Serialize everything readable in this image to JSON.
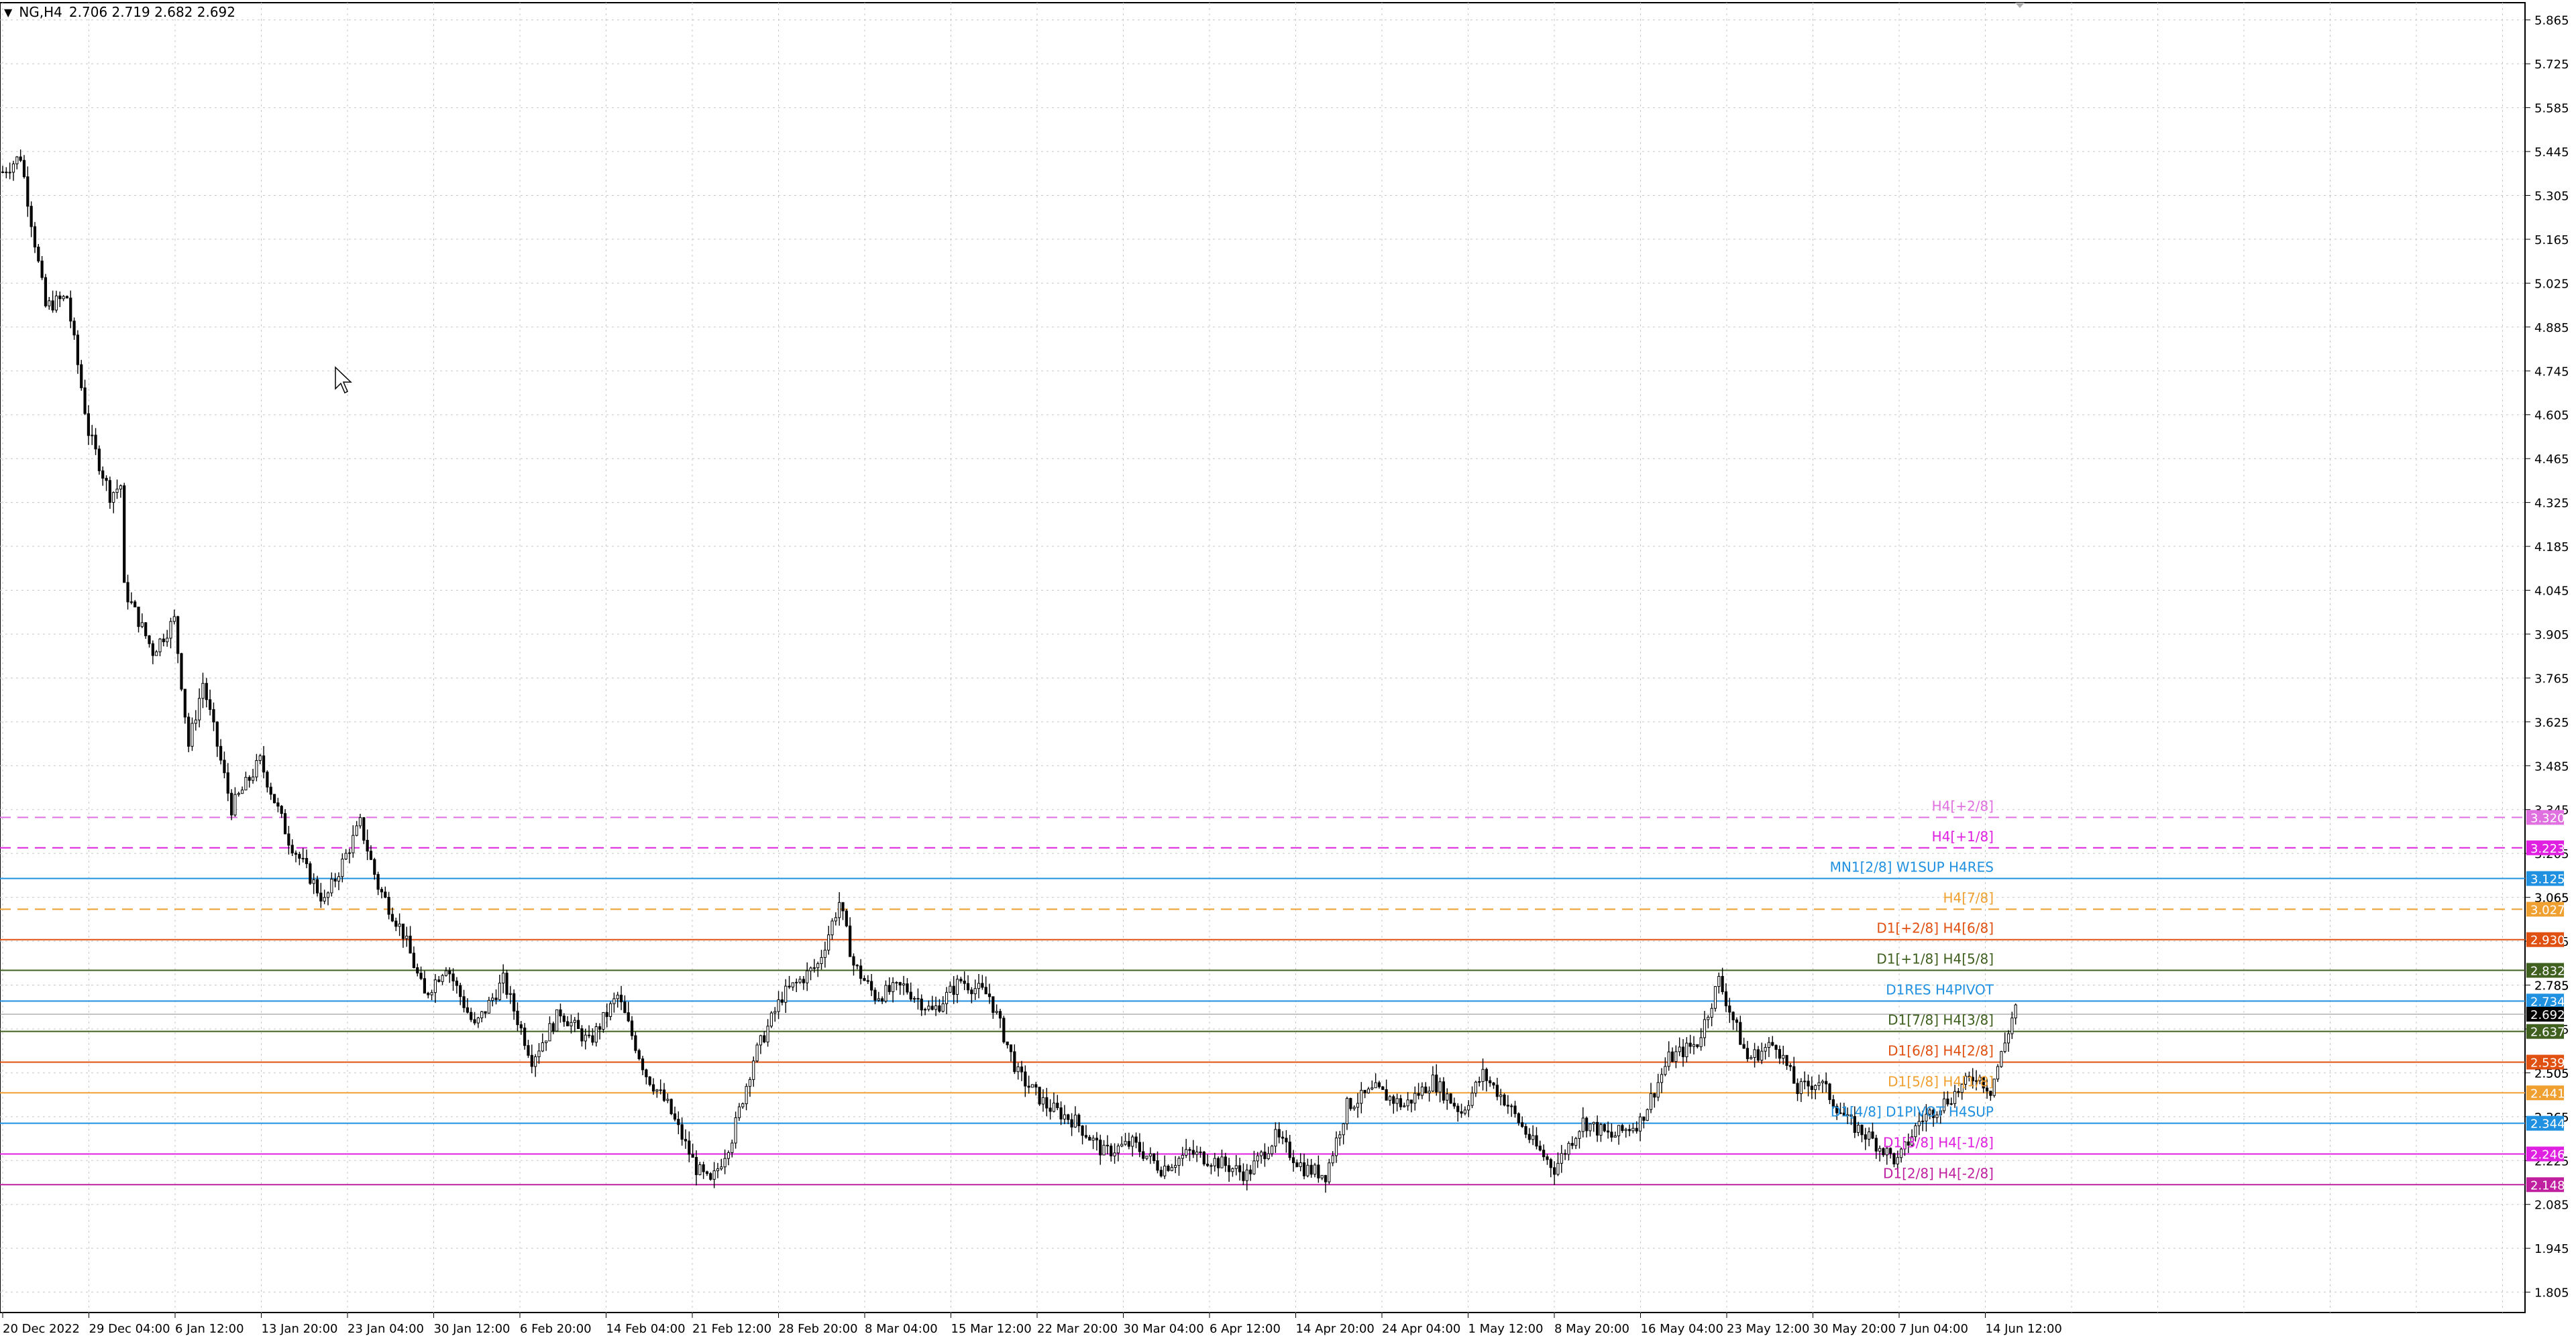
{
  "header": {
    "symbol": "NG,H4",
    "ohlc": "2.706 2.719 2.682 2.692"
  },
  "colors": {
    "background": "#ffffff",
    "grid": "#c8c8c8",
    "candle": "#000000",
    "axis": "#000000"
  },
  "chart_data": {
    "type": "candlestick",
    "grid": true,
    "ylim": [
      1.74,
      5.92
    ],
    "y_ticks": [
      "5.865",
      "5.725",
      "5.585",
      "5.445",
      "5.305",
      "5.165",
      "5.025",
      "4.885",
      "4.745",
      "4.605",
      "4.465",
      "4.325",
      "4.185",
      "4.045",
      "3.905",
      "3.765",
      "3.625",
      "3.485",
      "3.345",
      "3.205",
      "3.065",
      "2.925",
      "2.785",
      "2.645",
      "2.505",
      "2.365",
      "2.225",
      "2.085",
      "1.945",
      "1.805"
    ],
    "x_ticks": [
      "20 Dec 2022",
      "29 Dec 04:00",
      "6 Jan 12:00",
      "13 Jan 20:00",
      "23 Jan 04:00",
      "30 Jan 12:00",
      "6 Feb 20:00",
      "14 Feb 04:00",
      "21 Feb 12:00",
      "28 Feb 20:00",
      "8 Mar 04:00",
      "15 Mar 12:00",
      "22 Mar 20:00",
      "30 Mar 04:00",
      "6 Apr 12:00",
      "14 Apr 20:00",
      "24 Apr 04:00",
      "1 May 12:00",
      "8 May 20:00",
      "16 May 04:00",
      "23 May 12:00",
      "30 May 20:00",
      "7 Jun 04:00",
      "14 Jun 12:00"
    ],
    "price_path": [
      [
        0,
        5.38
      ],
      [
        5,
        5.43
      ],
      [
        12,
        4.95
      ],
      [
        18,
        4.98
      ],
      [
        24,
        4.55
      ],
      [
        30,
        4.35
      ],
      [
        33,
        4.38
      ],
      [
        34,
        4.05
      ],
      [
        42,
        3.85
      ],
      [
        48,
        3.95
      ],
      [
        52,
        3.55
      ],
      [
        56,
        3.75
      ],
      [
        64,
        3.35
      ],
      [
        72,
        3.5
      ],
      [
        80,
        3.25
      ],
      [
        90,
        3.05
      ],
      [
        100,
        3.3
      ],
      [
        105,
        3.1
      ],
      [
        112,
        2.95
      ],
      [
        118,
        2.75
      ],
      [
        124,
        2.85
      ],
      [
        132,
        2.65
      ],
      [
        140,
        2.8
      ],
      [
        148,
        2.55
      ],
      [
        156,
        2.7
      ],
      [
        164,
        2.6
      ],
      [
        172,
        2.75
      ],
      [
        180,
        2.5
      ],
      [
        186,
        2.4
      ],
      [
        194,
        2.2
      ],
      [
        198,
        2.15
      ],
      [
        204,
        2.3
      ],
      [
        210,
        2.55
      ],
      [
        218,
        2.75
      ],
      [
        228,
        2.85
      ],
      [
        234,
        3.05
      ],
      [
        238,
        2.85
      ],
      [
        244,
        2.75
      ],
      [
        252,
        2.78
      ],
      [
        260,
        2.7
      ],
      [
        268,
        2.8
      ],
      [
        276,
        2.75
      ],
      [
        284,
        2.5
      ],
      [
        292,
        2.4
      ],
      [
        300,
        2.35
      ],
      [
        308,
        2.25
      ],
      [
        316,
        2.28
      ],
      [
        324,
        2.2
      ],
      [
        332,
        2.25
      ],
      [
        340,
        2.22
      ],
      [
        348,
        2.18
      ],
      [
        356,
        2.3
      ],
      [
        364,
        2.2
      ],
      [
        370,
        2.18
      ],
      [
        376,
        2.4
      ],
      [
        384,
        2.45
      ],
      [
        392,
        2.4
      ],
      [
        400,
        2.48
      ],
      [
        408,
        2.38
      ],
      [
        414,
        2.5
      ],
      [
        420,
        2.42
      ],
      [
        428,
        2.28
      ],
      [
        434,
        2.2
      ],
      [
        442,
        2.35
      ],
      [
        450,
        2.3
      ],
      [
        458,
        2.35
      ],
      [
        466,
        2.55
      ],
      [
        474,
        2.6
      ],
      [
        480,
        2.8
      ],
      [
        488,
        2.55
      ],
      [
        496,
        2.6
      ],
      [
        502,
        2.45
      ],
      [
        508,
        2.48
      ],
      [
        516,
        2.35
      ],
      [
        522,
        2.3
      ],
      [
        530,
        2.22
      ],
      [
        536,
        2.35
      ],
      [
        544,
        2.42
      ],
      [
        552,
        2.5
      ],
      [
        556,
        2.45
      ],
      [
        560,
        2.6
      ],
      [
        563,
        2.72
      ]
    ],
    "levels": [
      {
        "label": "H4[+2/8]",
        "price_tag": "3.320",
        "value": 3.32,
        "color": "#e070e0",
        "dash": true
      },
      {
        "label": "H4[+1/8]",
        "price_tag": "3.223",
        "value": 3.223,
        "color": "#e020e0",
        "dash": true
      },
      {
        "label": "MN1[2/8] W1SUP H4RES",
        "price_tag": "3.125",
        "value": 3.125,
        "color": "#2090e0",
        "dash": false
      },
      {
        "label": "H4[7/8]",
        "price_tag": "3.027",
        "value": 3.027,
        "color": "#f0a030",
        "dash": true
      },
      {
        "label": "D1[+2/8] H4[6/8]",
        "price_tag": "2.930",
        "value": 2.93,
        "color": "#e05010",
        "dash": false
      },
      {
        "label": "D1[+1/8] H4[5/8]",
        "price_tag": "2.832",
        "value": 2.832,
        "color": "#406020",
        "dash": false
      },
      {
        "label": "D1RES H4PIVOT",
        "price_tag": "2.734",
        "value": 2.734,
        "color": "#2090e0",
        "dash": false
      },
      {
        "label": "D1[7/8] H4[3/8]",
        "price_tag": "2.637",
        "value": 2.637,
        "color": "#406020",
        "dash": false
      },
      {
        "label": "D1[6/8] H4[2/8]",
        "price_tag": "2.539",
        "value": 2.539,
        "color": "#e05010",
        "dash": false
      },
      {
        "label": "D1[5/8] H4[1/8]",
        "price_tag": "2.441",
        "value": 2.441,
        "color": "#f0a030",
        "dash": false
      },
      {
        "label": "D1[4/8] D1PIVOT H4SUP",
        "price_tag": "2.344",
        "value": 2.344,
        "color": "#2090e0",
        "dash": false
      },
      {
        "label": "D1[3/8] H4[-1/8]",
        "price_tag": "2.246",
        "value": 2.246,
        "color": "#e020e0",
        "dash": false
      },
      {
        "label": "D1[2/8] H4[-2/8]",
        "price_tag": "2.148",
        "value": 2.148,
        "color": "#c020a0",
        "dash": false
      }
    ],
    "current_price": {
      "value": 2.692,
      "tag": "2.692"
    },
    "extra_axis_labels": [
      {
        "text": "3.065",
        "value": 3.065
      },
      {
        "text": "2.785",
        "value": 2.785
      },
      {
        "text": "2.505",
        "value": 2.505
      },
      {
        "text": "2.365",
        "value": 2.365
      }
    ]
  }
}
